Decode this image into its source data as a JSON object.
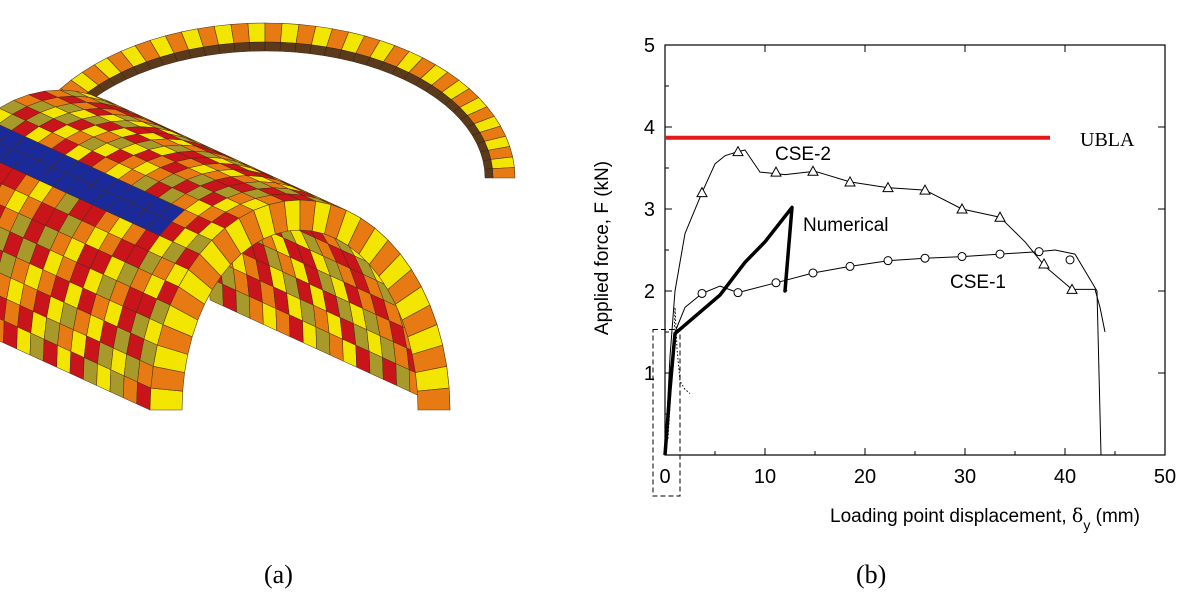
{
  "captions": {
    "a": "(a)",
    "b": "(b)"
  },
  "colors": {
    "ubla": "#e0191b",
    "brick_yellow": "#f2e600",
    "brick_orange": "#e87a14",
    "brick_olive": "#a89a2a",
    "brick_red": "#c8141a",
    "brick_blue": "#1a2a9a",
    "brick_dark": "#5a3a1a"
  },
  "chart_data": {
    "type": "line",
    "title": "",
    "xlabel_main": "Loading point displacement, ",
    "xlabel_symbol": "δ",
    "xlabel_sub": "y",
    "xlabel_unit": " (mm)",
    "ylabel": "Applied force, F (kN)",
    "xlim": [
      0,
      50
    ],
    "ylim": [
      0,
      5
    ],
    "xticks": [
      "0",
      "10",
      "20",
      "30",
      "40",
      "50"
    ],
    "yticks": [
      "1",
      "2",
      "3",
      "4",
      "5"
    ],
    "grid": false,
    "series": [
      {
        "name": "CSE-2",
        "marker": "triangle",
        "x": [
          0,
          0.5,
          1,
          2,
          3.7,
          5,
          6,
          7.3,
          8,
          9.5,
          12,
          15,
          18.5,
          22.3,
          26,
          29.7,
          33.5,
          36,
          38,
          40.7,
          43,
          43.5,
          44
        ],
        "y": [
          0,
          1.2,
          2.0,
          2.7,
          3.2,
          3.55,
          3.65,
          3.7,
          3.72,
          3.45,
          3.42,
          3.46,
          3.33,
          3.26,
          3.23,
          3.0,
          2.9,
          2.6,
          2.3,
          2.02,
          2.02,
          1.8,
          1.5
        ],
        "marker_x": [
          3.7,
          7.3,
          11.1,
          14.8,
          18.5,
          22.3,
          26,
          29.7,
          33.5,
          37.9,
          40.7
        ],
        "marker_y": [
          3.2,
          3.7,
          3.45,
          3.46,
          3.33,
          3.26,
          3.23,
          3.0,
          2.9,
          2.33,
          2.02
        ]
      },
      {
        "name": "CSE-1",
        "marker": "circle",
        "x": [
          0,
          0.5,
          1,
          2,
          3.7,
          5.5,
          7.3,
          11.1,
          14.8,
          18.5,
          22.3,
          26,
          29.7,
          33.5,
          37.4,
          39,
          41,
          43.2,
          43.5,
          43.6
        ],
        "y": [
          0,
          1.0,
          1.5,
          1.8,
          1.97,
          2.06,
          1.98,
          2.1,
          2.22,
          2.3,
          2.37,
          2.4,
          2.42,
          2.45,
          2.48,
          2.5,
          2.45,
          2.0,
          0.5,
          0
        ],
        "marker_x": [
          3.7,
          7.3,
          11.1,
          14.8,
          18.5,
          22.3,
          26,
          29.7,
          33.5,
          37.4,
          40.5
        ],
        "marker_y": [
          1.97,
          1.98,
          2.1,
          2.22,
          2.3,
          2.37,
          2.4,
          2.42,
          2.45,
          2.48,
          2.38
        ]
      },
      {
        "name": "Numerical",
        "marker": "none",
        "x": [
          0,
          0.5,
          1,
          5.5,
          8,
          10,
          12.7,
          12,
          12.1
        ],
        "y": [
          0,
          0.8,
          1.48,
          1.95,
          2.35,
          2.6,
          3.02,
          2.0,
          2.02
        ]
      },
      {
        "name": "UBLA",
        "marker": "none",
        "x": [
          0,
          38.5
        ],
        "y": [
          3.87,
          3.87
        ]
      }
    ],
    "series_labels": {
      "cse2": "CSE-2",
      "cse1": "CSE-1",
      "numerical": "Numerical",
      "ubla": "UBLA"
    },
    "inset_box": {
      "x": [
        -1.2,
        1.5
      ],
      "y": [
        -0.5,
        1.53
      ]
    }
  }
}
